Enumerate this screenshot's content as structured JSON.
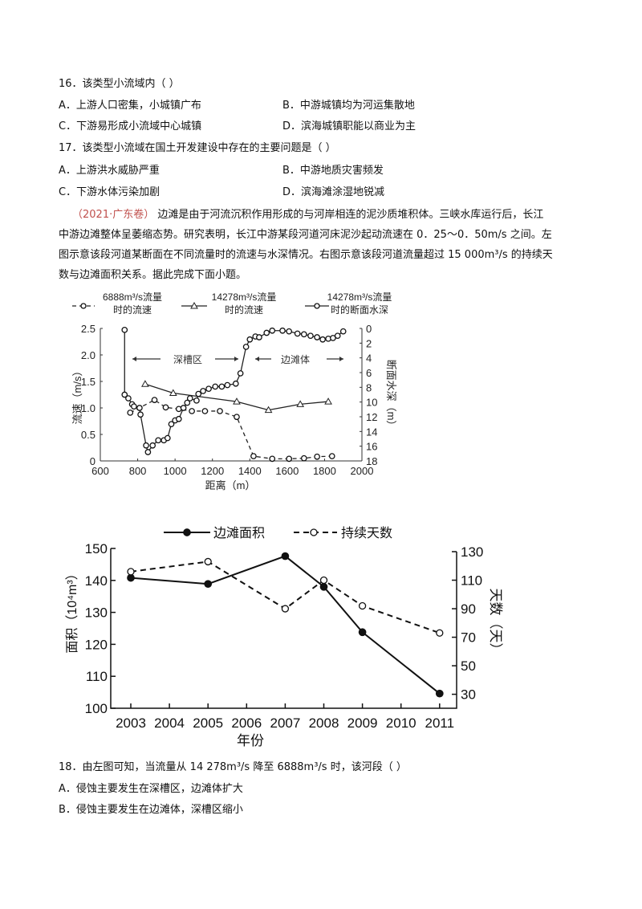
{
  "q16": {
    "stem": "16．该类型小流域内（    ）",
    "options": [
      "A．上游人口密集，小城镇广布",
      "B．中游城镇均为河运集散地",
      "C．下游易形成小流域中心城镇",
      "D．滨海城镇职能以商业为主"
    ]
  },
  "q17": {
    "stem": "17．该类型小流域在国土开发建设中存在的主要问题是（    ）",
    "options": [
      "A．上游洪水威胁严重",
      "B．中游地质灾害频发",
      "C．下游水体污染加剧",
      "D．滨海滩涂湿地锐减"
    ]
  },
  "passage": {
    "source": "（2021·广东卷）",
    "lines": [
      "边滩是由于河流沉积作用形成的与河岸相连的泥沙质堆积体。三峡水库运行后，长江",
      "中游边滩整体呈萎缩态势。研究表明，长江中游某段河道河床泥沙起动流速在 0．25～0．50m/s 之间。左",
      "图示意该段河道某断面在不同流量时的流速与水深情况。右图示意该段河道流量超过 15 000m³/s 的持续天",
      "数与边滩面积关系。据此完成下面小题。"
    ]
  },
  "q18": {
    "stem": "18．由左图可知，当流量从 14 278m³/s 降至 6888m³/s 时，该河段（    ）",
    "options": [
      "A．侵蚀主要发生在深槽区，边滩体扩大",
      "B．侵蚀主要发生在边滩体，深槽区缩小"
    ]
  },
  "chart_data": [
    {
      "type": "line",
      "xlabel": "距离（m）",
      "ylabel": "流速（m/s）",
      "y2label": "断面水深（m）",
      "xlim": [
        600,
        2000
      ],
      "xticks": [
        600,
        800,
        1000,
        1200,
        1400,
        1600,
        1800,
        2000
      ],
      "ylim": [
        0,
        2.5
      ],
      "yticks": [
        "2.5",
        "2.0",
        "1.5",
        "1.0",
        "0.5",
        "0"
      ],
      "y2lim": [
        0,
        18
      ],
      "y2_inverted": true,
      "y2ticks": [
        "0",
        "2",
        "4",
        "6",
        "8",
        "10",
        "12",
        "14",
        "16",
        "18"
      ],
      "annotations": [
        "深槽区",
        "边滩体"
      ],
      "legend": [
        "6888m³/s流量|时的流速",
        "14278m³/s流量|时的流速",
        "14278m³/s流量|时的断面水深"
      ],
      "series": [
        {
          "name": "6888m³/s流量时的流速",
          "axis": "left",
          "style": "dashed-circle",
          "x": [
            760,
            890,
            950,
            1020,
            1090,
            1160,
            1240,
            1330,
            1420,
            1520,
            1610,
            1690,
            1760,
            1840
          ],
          "y": [
            0.91,
            1.15,
            1.01,
            0.98,
            0.94,
            0.94,
            0.94,
            0.83,
            0.09,
            0.04,
            0.04,
            0.05,
            0.08,
            0.09
          ]
        },
        {
          "name": "14278m³/s流量时的流速",
          "axis": "left",
          "style": "solid-triangle",
          "x": [
            840,
            990,
            1330,
            1500,
            1670,
            1820
          ],
          "y": [
            1.45,
            1.28,
            1.12,
            0.96,
            1.07,
            1.12
          ]
        },
        {
          "name": "14278m³/s流量时的断面水深",
          "axis": "right",
          "style": "solid-circle",
          "x": [
            730,
            730,
            750,
            770,
            780,
            810,
            815,
            845,
            855,
            880,
            910,
            940,
            960,
            980,
            1000,
            1020,
            1045,
            1065,
            1080,
            1115,
            1125,
            1150,
            1180,
            1215,
            1250,
            1280,
            1325,
            1350,
            1380,
            1400,
            1430,
            1450,
            1490,
            1520,
            1575,
            1610,
            1655,
            1690,
            1725,
            1760,
            1790,
            1820,
            1845,
            1870,
            1900
          ],
          "y": [
            0.2,
            9.0,
            9.5,
            10.3,
            10.6,
            10.8,
            11.7,
            15.9,
            16.8,
            15.9,
            15.2,
            15.2,
            14.9,
            13.0,
            12.5,
            12.3,
            10.8,
            10.1,
            9.5,
            9.8,
            8.9,
            8.5,
            8.2,
            7.9,
            7.9,
            7.7,
            7.5,
            6.1,
            2.5,
            1.5,
            1.1,
            1.2,
            0.6,
            0.3,
            0.3,
            0.4,
            0.7,
            0.8,
            1.0,
            1.2,
            1.5,
            1.4,
            1.3,
            1.0,
            0.4
          ]
        }
      ]
    },
    {
      "type": "line",
      "categories": [
        "2003",
        "2004",
        "2005",
        "2006",
        "2007",
        "2008",
        "2009",
        "2010",
        "2011"
      ],
      "xlabel": "年份",
      "ylabel": "面积（10⁴m³）",
      "y2label": "天数（天）",
      "ylim": [
        100,
        150
      ],
      "yticks": [
        "150",
        "140",
        "130",
        "120",
        "110",
        "100"
      ],
      "y2lim": [
        20,
        130
      ],
      "y2ticks": [
        "130",
        "110",
        "90",
        "70",
        "50",
        "30"
      ],
      "legend": "top",
      "series": [
        {
          "name": "边滩面积",
          "axis": "left",
          "style": "solid-dot",
          "x": [
            "2003",
            "2005",
            "2007",
            "2008",
            "2009",
            "2011"
          ],
          "y": [
            140.8,
            138.9,
            147.6,
            138.0,
            123.8,
            104.6
          ]
        },
        {
          "name": "持续天数",
          "axis": "right",
          "style": "dashed-circle",
          "x": [
            "2003",
            "2005",
            "2007",
            "2008",
            "2009",
            "2011"
          ],
          "y": [
            116,
            123,
            90,
            110,
            92,
            73
          ]
        }
      ]
    }
  ]
}
